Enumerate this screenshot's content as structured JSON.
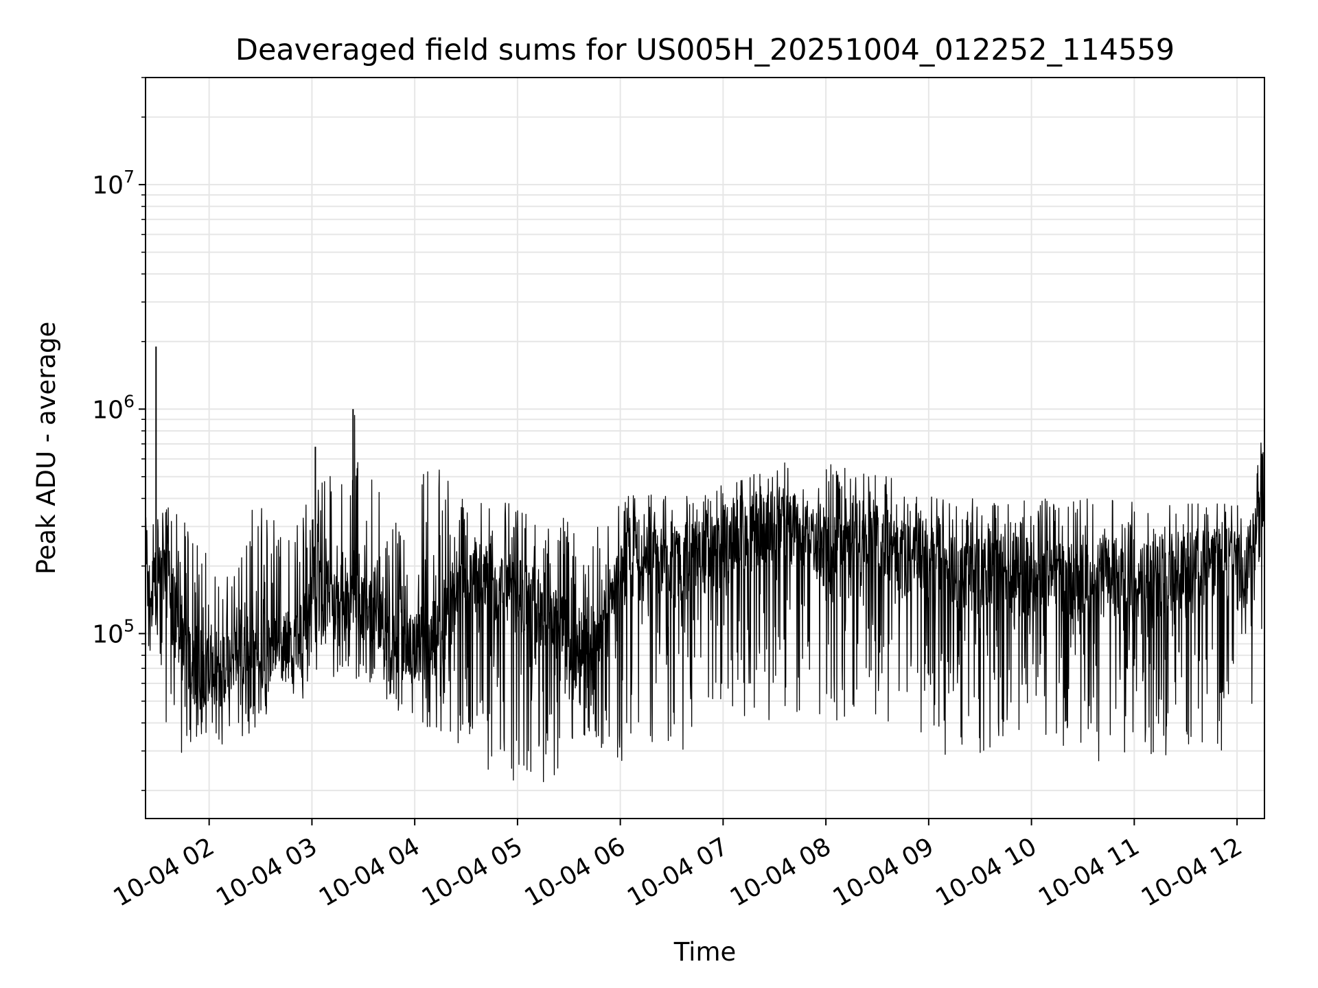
{
  "chart_data": {
    "type": "line",
    "title": "Deaveraged field sums for US005H_20251004_012252_114559",
    "xlabel": "Time",
    "ylabel": "Peak ADU - average",
    "yscale": "log",
    "xlim": [
      "10-04 01:22:52",
      "10-04 12:16"
    ],
    "ylim": [
      15000,
      30000000
    ],
    "grid": true,
    "line_color": "#000000",
    "grid_color": "#e6e6e6",
    "x_ticks": [
      {
        "label": "10-04 02",
        "hour": 2
      },
      {
        "label": "10-04 03",
        "hour": 3
      },
      {
        "label": "10-04 04",
        "hour": 4
      },
      {
        "label": "10-04 05",
        "hour": 5
      },
      {
        "label": "10-04 06",
        "hour": 6
      },
      {
        "label": "10-04 07",
        "hour": 7
      },
      {
        "label": "10-04 08",
        "hour": 8
      },
      {
        "label": "10-04 09",
        "hour": 9
      },
      {
        "label": "10-04 10",
        "hour": 10
      },
      {
        "label": "10-04 11",
        "hour": 11
      },
      {
        "label": "10-04 12",
        "hour": 12
      }
    ],
    "y_ticks": [
      {
        "base": "10",
        "exp": "5",
        "value": 100000
      },
      {
        "base": "10",
        "exp": "6",
        "value": 1000000
      },
      {
        "base": "10",
        "exp": "7",
        "value": 10000000
      }
    ],
    "series": [
      {
        "x": [
          "10-04 01:25",
          "10-04 01:35",
          "10-04 01:45",
          "10-04 01:55",
          "10-04 02:05",
          "10-04 02:15",
          "10-04 02:25",
          "10-04 02:35",
          "10-04 02:45",
          "10-04 02:55",
          "10-04 03:05",
          "10-04 03:15",
          "10-04 03:25",
          "10-04 03:35",
          "10-04 03:45",
          "10-04 03:55",
          "10-04 04:05",
          "10-04 04:15",
          "10-04 04:25",
          "10-04 04:35",
          "10-04 04:45",
          "10-04 04:55",
          "10-04 05:05",
          "10-04 05:15",
          "10-04 05:25",
          "10-04 05:35",
          "10-04 05:45",
          "10-04 05:55",
          "10-04 06:05",
          "10-04 06:15",
          "10-04 06:25",
          "10-04 06:35",
          "10-04 06:45",
          "10-04 06:55",
          "10-04 07:05",
          "10-04 07:15",
          "10-04 07:25",
          "10-04 07:35",
          "10-04 07:45",
          "10-04 07:55",
          "10-04 08:05",
          "10-04 08:15",
          "10-04 08:25",
          "10-04 08:35",
          "10-04 08:45",
          "10-04 08:55",
          "10-04 09:05",
          "10-04 09:15",
          "10-04 09:25",
          "10-04 09:35",
          "10-04 09:45",
          "10-04 09:55",
          "10-04 10:05",
          "10-04 10:15",
          "10-04 10:25",
          "10-04 10:35",
          "10-04 10:45",
          "10-04 10:55",
          "10-04 11:05",
          "10-04 11:15",
          "10-04 11:25",
          "10-04 11:35",
          "10-04 11:45",
          "10-04 11:55",
          "10-04 12:05",
          "10-04 12:15"
        ],
        "mid": [
          150000,
          180000,
          80000,
          70000,
          70000,
          80000,
          80000,
          80000,
          90000,
          100000,
          150000,
          150000,
          150000,
          130000,
          100000,
          90000,
          90000,
          100000,
          150000,
          170000,
          160000,
          160000,
          140000,
          130000,
          100000,
          90000,
          90000,
          140000,
          200000,
          200000,
          200000,
          200000,
          220000,
          220000,
          260000,
          280000,
          300000,
          300000,
          280000,
          240000,
          250000,
          260000,
          280000,
          260000,
          220000,
          220000,
          200000,
          200000,
          170000,
          200000,
          180000,
          180000,
          180000,
          180000,
          170000,
          170000,
          180000,
          160000,
          170000,
          180000,
          190000,
          200000,
          200000,
          200000,
          180000,
          350000
        ],
        "max": [
          330000,
          400000,
          320000,
          260000,
          180000,
          200000,
          380000,
          380000,
          280000,
          370000,
          680000,
          430000,
          1000000,
          560000,
          330000,
          550000,
          560000,
          610000,
          430000,
          400000,
          400000,
          380000,
          340000,
          340000,
          330000,
          320000,
          330000,
          410000,
          420000,
          420000,
          410000,
          470000,
          400000,
          450000,
          470000,
          500000,
          540000,
          600000,
          480000,
          460000,
          630000,
          550000,
          500000,
          640000,
          450000,
          420000,
          420000,
          390000,
          400000,
          390000,
          390000,
          390000,
          400000,
          400000,
          390000,
          410000,
          410000,
          380000,
          400000,
          390000,
          400000,
          390000,
          400000,
          390000,
          380000,
          800000
        ],
        "min": [
          80000,
          40000,
          26000,
          30000,
          30000,
          35000,
          35000,
          40000,
          55000,
          50000,
          65000,
          60000,
          60000,
          60000,
          45000,
          40000,
          40000,
          30000,
          30000,
          27000,
          22000,
          22000,
          22000,
          20000,
          25000,
          30000,
          35000,
          23000,
          25000,
          27000,
          29000,
          30000,
          32000,
          45000,
          45000,
          42000,
          40000,
          45000,
          40000,
          37000,
          37000,
          40000,
          38000,
          40000,
          38000,
          33000,
          27000,
          30000,
          27000,
          28000,
          24000,
          29000,
          29000,
          30000,
          26000,
          25000,
          27000,
          29000,
          30000,
          27000,
          30000,
          31000,
          30000,
          30000,
          30000,
          110000
        ],
        "spikes": [
          {
            "t": "10-04 01:29",
            "value": 1900000
          },
          {
            "t": "10-04 03:24",
            "value": 1000000
          },
          {
            "t": "10-04 03:02",
            "value": 680000
          }
        ]
      }
    ]
  }
}
